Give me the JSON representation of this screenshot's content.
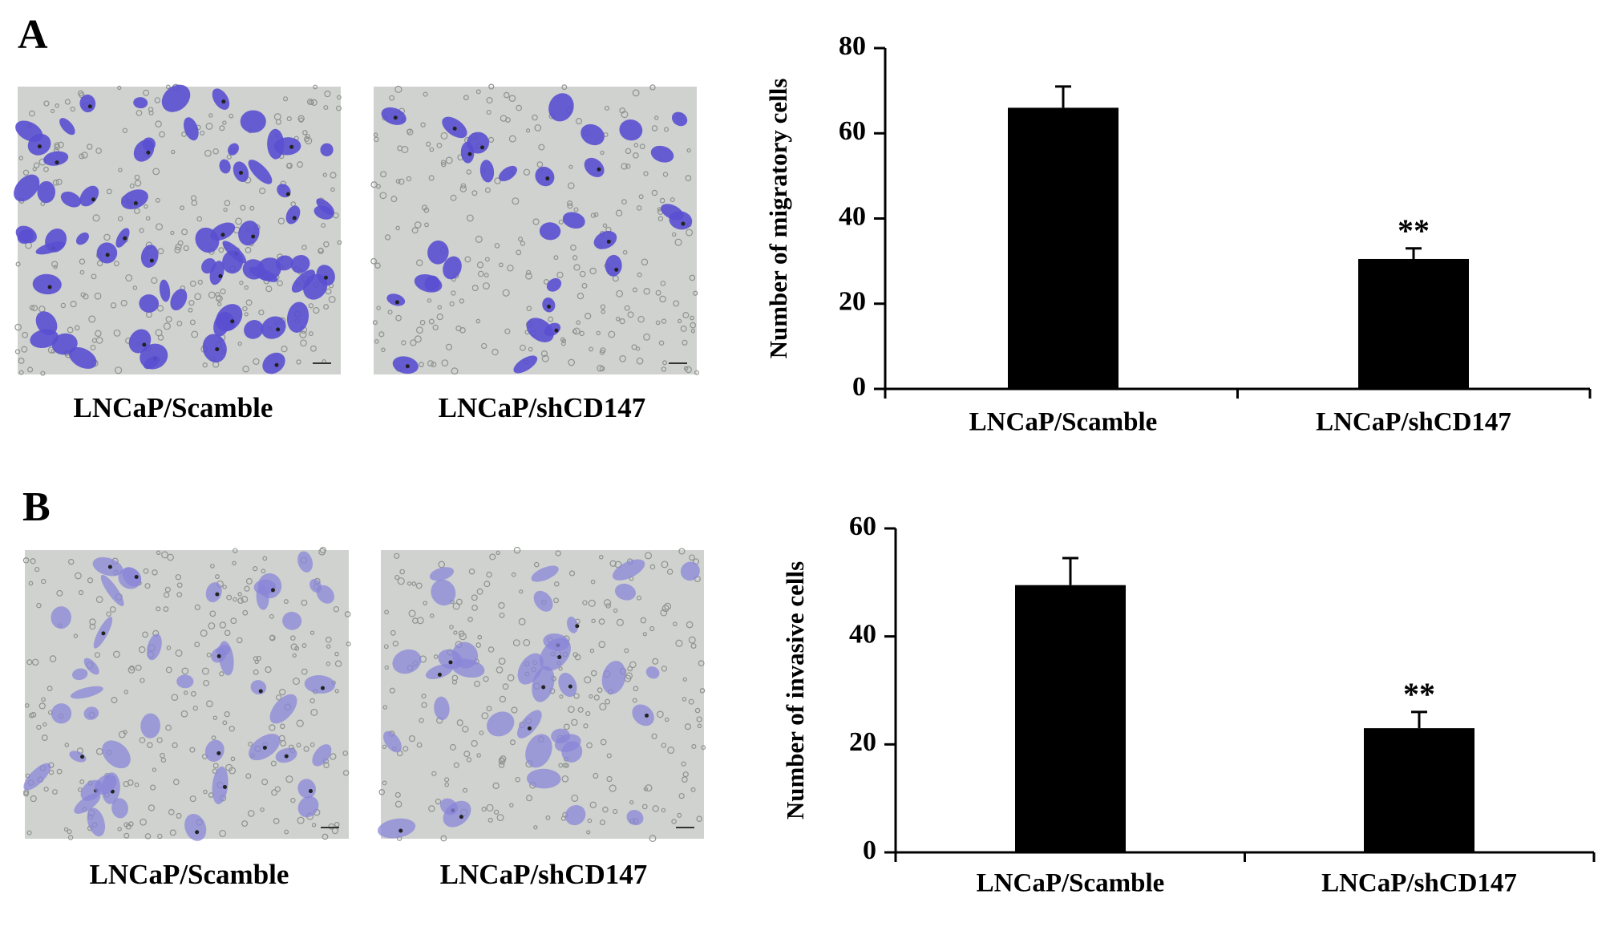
{
  "panels": [
    {
      "label": "A",
      "images": [
        {
          "caption": "LNCaP/Scamble"
        },
        {
          "caption": "LNCaP/shCD147"
        }
      ]
    },
    {
      "label": "B",
      "images": [
        {
          "caption": "LNCaP/Scamble"
        },
        {
          "caption": "LNCaP/shCD147"
        }
      ]
    }
  ],
  "chart_data": [
    {
      "type": "bar",
      "y_label": "Number of migratory cells",
      "categories": [
        "LNCaP/Scamble",
        "LNCaP/shCD147"
      ],
      "values": [
        66,
        30.5
      ],
      "errors": [
        5,
        2.5
      ],
      "value_annotations": [
        null,
        "**"
      ],
      "color": "#000000",
      "ylim": [
        0,
        80
      ],
      "yticks": [
        0,
        20,
        40,
        60,
        80
      ]
    },
    {
      "type": "bar",
      "y_label": "Number of invasive cells",
      "categories": [
        "LNCaP/Scamble",
        "LNCaP/shCD147"
      ],
      "values": [
        49.5,
        23
      ],
      "errors": [
        5,
        3
      ],
      "value_annotations": [
        null,
        "**"
      ],
      "color": "#000000",
      "ylim": [
        0,
        60
      ],
      "yticks": [
        0,
        20,
        40,
        60
      ]
    }
  ]
}
